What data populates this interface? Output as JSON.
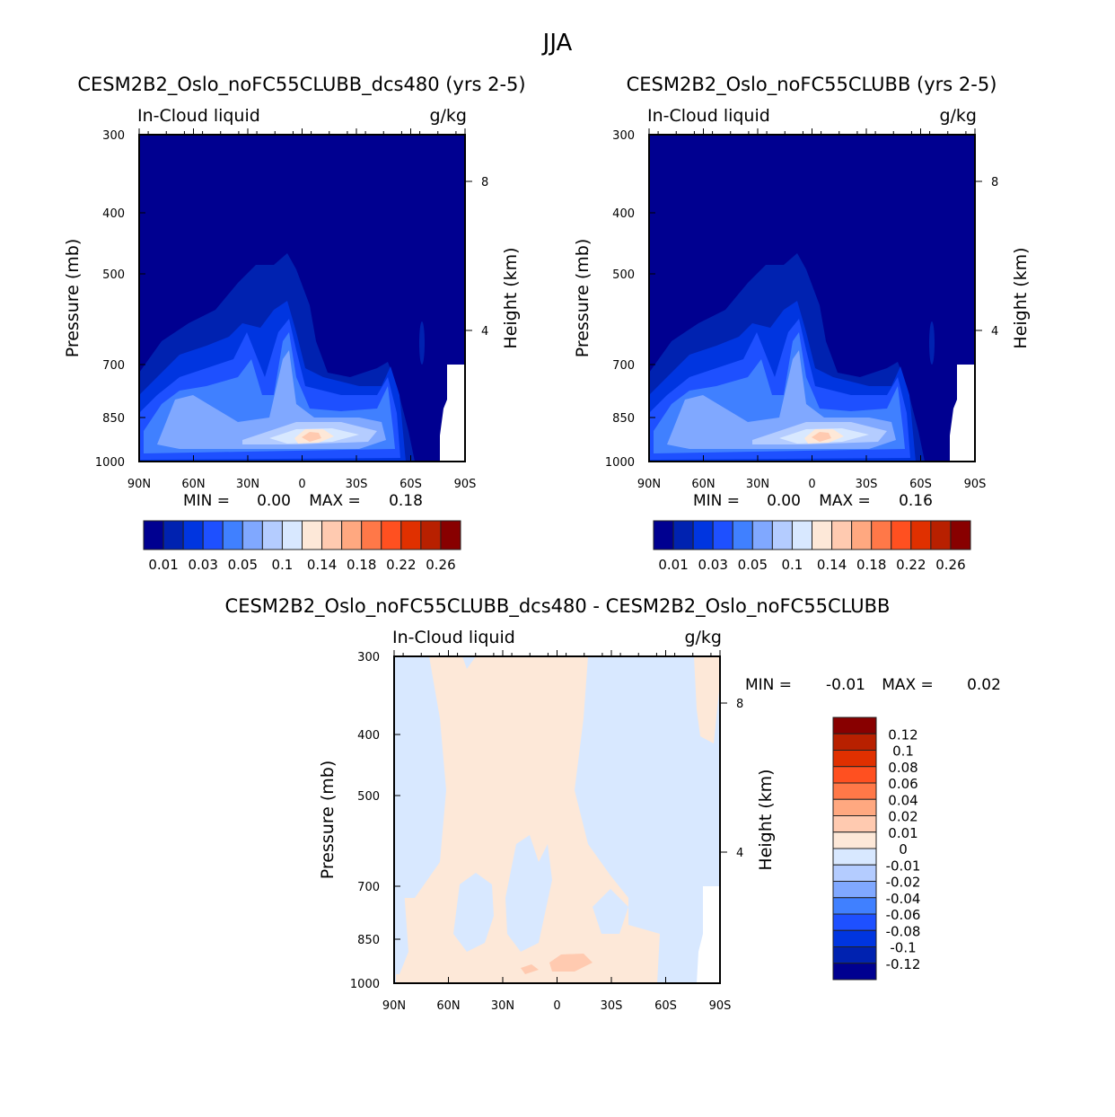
{
  "chart_data": {
    "type": "contour",
    "title": "JJA",
    "panels": [
      {
        "title": "CESM2B2_Oslo_noFC55CLUBB_dcs480 (yrs 2-5)",
        "left_label": "In-Cloud liquid",
        "right_label": "g/kg",
        "ylabel": "Pressure (mb)",
        "ylabel_right": "Height (km)",
        "yticks": [
          "300",
          "400",
          "500",
          "700",
          "850",
          "1000"
        ],
        "yticks_right": [
          "8",
          "4"
        ],
        "xticks": [
          "90N",
          "60N",
          "30N",
          "0",
          "30S",
          "60S",
          "90S"
        ],
        "min_label": "MIN =",
        "min": "0.00",
        "max_label": "MAX =",
        "max": "0.18"
      },
      {
        "title": "CESM2B2_Oslo_noFC55CLUBB (yrs 2-5)",
        "left_label": "In-Cloud liquid",
        "right_label": "g/kg",
        "ylabel": "Pressure (mb)",
        "ylabel_right": "Height (km)",
        "yticks": [
          "300",
          "400",
          "500",
          "700",
          "850",
          "1000"
        ],
        "yticks_right": [
          "8",
          "4"
        ],
        "xticks": [
          "90N",
          "60N",
          "30N",
          "0",
          "30S",
          "60S",
          "90S"
        ],
        "min_label": "MIN =",
        "min": "0.00",
        "max_label": "MAX =",
        "max": "0.16"
      },
      {
        "title": "CESM2B2_Oslo_noFC55CLUBB_dcs480 - CESM2B2_Oslo_noFC55CLUBB",
        "left_label": "In-Cloud liquid",
        "right_label": "g/kg",
        "ylabel": "Pressure (mb)",
        "ylabel_right": "Height (km)",
        "yticks": [
          "300",
          "400",
          "500",
          "700",
          "850",
          "1000"
        ],
        "yticks_right": [
          "8",
          "4"
        ],
        "xticks": [
          "90N",
          "60N",
          "30N",
          "0",
          "30S",
          "60S",
          "90S"
        ],
        "min_label": "MIN =",
        "min": "-0.01",
        "max_label": "MAX =",
        "max": "0.02"
      }
    ],
    "colorbar_top": {
      "labels": [
        "0.01",
        "0.03",
        "0.05",
        "0.1",
        "0.14",
        "0.18",
        "0.22",
        "0.26"
      ],
      "colors": [
        "#000090",
        "#0022b0",
        "#0035e0",
        "#1e50ff",
        "#4080ff",
        "#80a8ff",
        "#b4ccff",
        "#d8e8ff",
        "#fde8d8",
        "#ffcab0",
        "#ffa880",
        "#ff7848",
        "#ff5020",
        "#e03000",
        "#b82000",
        "#880000"
      ]
    },
    "colorbar_diff": {
      "labels": [
        "0.12",
        "0.1",
        "0.08",
        "0.06",
        "0.04",
        "0.02",
        "0.01",
        "0",
        "-0.01",
        "-0.02",
        "-0.04",
        "-0.06",
        "-0.08",
        "-0.1",
        "-0.12"
      ],
      "colors": [
        "#880000",
        "#b82000",
        "#e03000",
        "#ff5020",
        "#ff7848",
        "#ffa880",
        "#ffcab0",
        "#fde8d8",
        "#d8e8ff",
        "#b4ccff",
        "#80a8ff",
        "#4080ff",
        "#1e50ff",
        "#0035e0",
        "#0022b0",
        "#000090"
      ]
    }
  }
}
